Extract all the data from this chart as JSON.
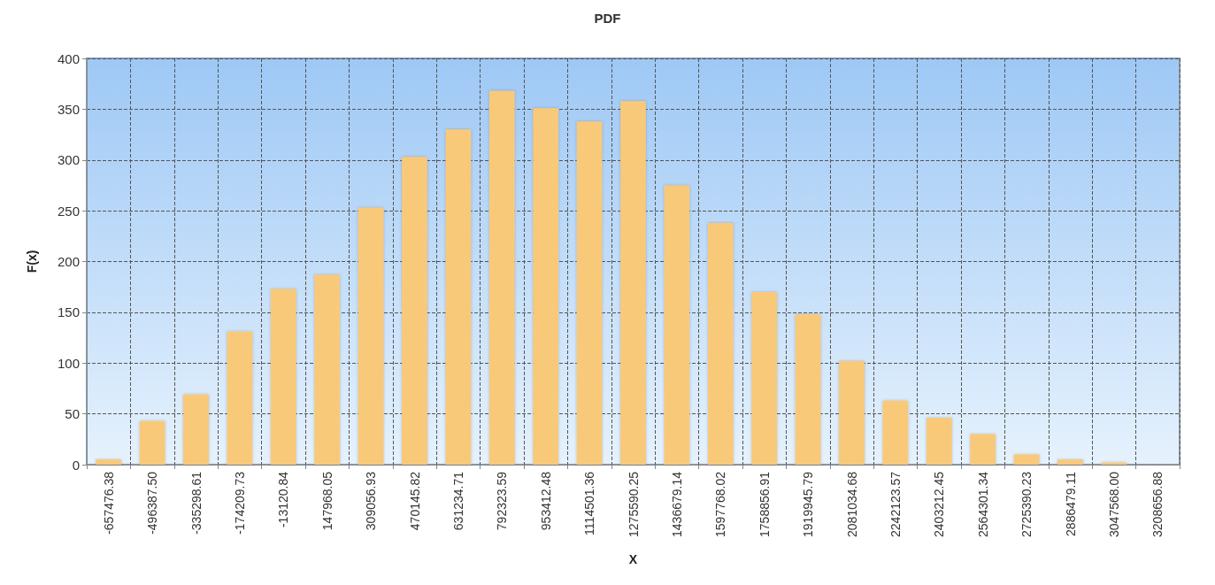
{
  "chart_data": {
    "type": "bar",
    "title": "PDF",
    "xlabel": "X",
    "ylabel": "F(x)",
    "categories": [
      "-657476.38",
      "-496387.50",
      "-335298.61",
      "-174209.73",
      "-13120.84",
      "147968.05",
      "309056.93",
      "470145.82",
      "631234.71",
      "792323.59",
      "953412.48",
      "1114501.36",
      "1275590.25",
      "1436679.14",
      "1597768.02",
      "1758856.91",
      "1919945.79",
      "2081034.68",
      "2242123.57",
      "2403212.45",
      "2564301.34",
      "2725390.23",
      "2886479.11",
      "3047568.00",
      "3208656.88"
    ],
    "values": [
      5,
      43,
      69,
      131,
      173,
      187,
      253,
      303,
      330,
      368,
      351,
      338,
      358,
      275,
      238,
      170,
      148,
      102,
      63,
      46,
      30,
      10,
      5,
      2,
      0
    ],
    "color": "#f9c97a",
    "ylim": [
      0,
      400
    ],
    "yticks": [
      0,
      50,
      100,
      150,
      200,
      250,
      300,
      350,
      400
    ],
    "grid": true,
    "line_style": "dashed"
  }
}
